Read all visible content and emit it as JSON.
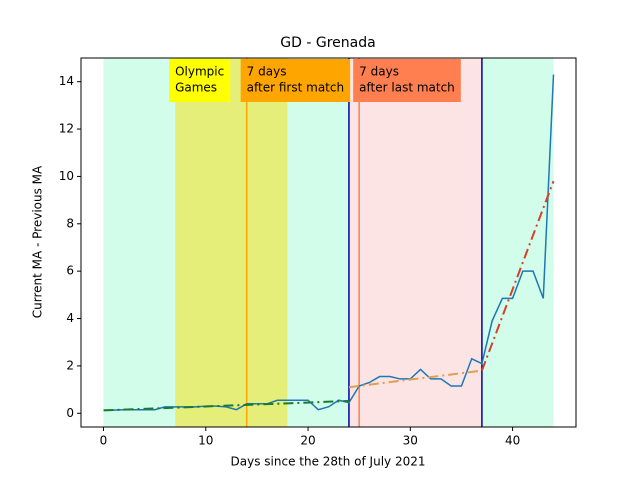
{
  "chart_data": {
    "type": "line",
    "title": "GD - Grenada",
    "xlabel": "Days since the 28th of July 2021",
    "ylabel": "Current MA - Previous MA",
    "xlim": [
      -2.2,
      46.2
    ],
    "ylim": [
      -0.58,
      15.0
    ],
    "xticks": [
      0,
      10,
      20,
      30,
      40
    ],
    "yticks": [
      0,
      2,
      4,
      6,
      8,
      10,
      12,
      14
    ],
    "spans": [
      {
        "x": [
          0,
          7
        ],
        "color": "#d2fdea"
      },
      {
        "x": [
          7,
          18
        ],
        "color": "#e6ee7a"
      },
      {
        "x": [
          18,
          24
        ],
        "color": "#d2fdea"
      },
      {
        "x": [
          24,
          37
        ],
        "color": "#fde4e4"
      },
      {
        "x": [
          37,
          44
        ],
        "color": "#d2fdea"
      }
    ],
    "vlines": [
      {
        "x": 14,
        "color": "#ffa500"
      },
      {
        "x": 24,
        "color": "#0000aa"
      },
      {
        "x": 25,
        "color": "#ff7f50"
      },
      {
        "x": 37,
        "color": "#0000aa"
      }
    ],
    "annotations": [
      {
        "lines": [
          "Olympic",
          "Games"
        ],
        "x": 7,
        "color": "#ffff00"
      },
      {
        "lines": [
          "7 days",
          "after first match"
        ],
        "x": 14,
        "color": "#ffa500"
      },
      {
        "lines": [
          "7 days",
          "after last match"
        ],
        "x": 25,
        "color": "#ff7f50"
      }
    ],
    "series": [
      {
        "color": "#1f77b4",
        "style": "solid",
        "x": [
          0,
          1,
          2,
          3,
          4,
          5,
          6,
          7,
          8,
          9,
          10,
          11,
          12,
          13,
          14,
          15,
          16,
          17,
          18,
          19,
          20,
          21,
          22,
          23,
          24,
          25,
          26,
          27,
          28,
          29,
          30,
          31,
          32,
          33,
          34,
          35,
          36,
          37,
          38,
          39,
          40,
          41,
          42,
          43,
          44
        ],
        "values": [
          0.13,
          0.13,
          0.15,
          0.15,
          0.15,
          0.15,
          0.27,
          0.27,
          0.27,
          0.27,
          0.3,
          0.3,
          0.27,
          0.15,
          0.4,
          0.4,
          0.4,
          0.55,
          0.55,
          0.55,
          0.55,
          0.15,
          0.27,
          0.55,
          0.45,
          1.15,
          1.3,
          1.55,
          1.55,
          1.45,
          1.45,
          1.85,
          1.45,
          1.45,
          1.15,
          1.15,
          2.3,
          2.1,
          3.9,
          4.85,
          4.85,
          6.0,
          6.0,
          4.85,
          14.3
        ]
      },
      {
        "color": "#1a7a30",
        "style": "dashdot",
        "x": [
          0,
          24
        ],
        "values": [
          0.12,
          0.52
        ]
      },
      {
        "color": "#dda050",
        "style": "dashdot",
        "x": [
          24,
          37
        ],
        "values": [
          1.1,
          1.8
        ]
      },
      {
        "color": "#d4402a",
        "style": "dashdot",
        "x": [
          37,
          44
        ],
        "values": [
          1.8,
          9.8
        ]
      }
    ]
  }
}
